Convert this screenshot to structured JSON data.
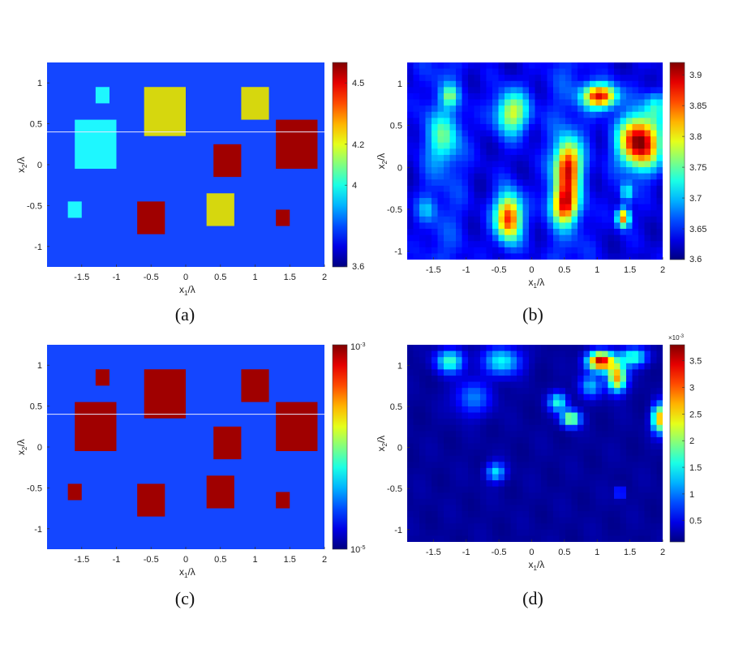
{
  "colors": {
    "background_blue": "#1446ff",
    "cyan": "#1ef7ff",
    "yellow": "#d6d70e",
    "dark_red": "#a00000",
    "white_line": "#e8e8ff"
  },
  "chart_data": [
    {
      "panel": "a",
      "type": "heatmap",
      "caption": "(a)",
      "xlabel_main": "x",
      "xlabel_sub": "1",
      "xlabel_rest": "/λ",
      "ylabel_main": "x",
      "ylabel_sub": "2",
      "ylabel_rest": "/λ",
      "xlim": [
        -2.0,
        2.0
      ],
      "ylim": [
        -1.25,
        1.25
      ],
      "xticks": [
        "-1.5",
        "-1",
        "-0.5",
        "0",
        "0.5",
        "1",
        "1.5",
        "2"
      ],
      "yticks": [
        "1",
        "0.5",
        "0",
        "-0.5",
        "-1"
      ],
      "colorbar": {
        "min": 3.6,
        "max": 4.6,
        "ticks": [
          "4.5",
          "4.2",
          "4",
          "3.6"
        ]
      },
      "background_value": 3.6,
      "blocks": [
        {
          "x0": -1.3,
          "x1": -1.1,
          "y0": 0.75,
          "y1": 0.95,
          "value": 3.9
        },
        {
          "x0": -1.6,
          "x1": -1.0,
          "y0": -0.05,
          "y1": 0.55,
          "value": 3.9
        },
        {
          "x0": -1.7,
          "x1": -1.5,
          "y0": -0.65,
          "y1": -0.45,
          "value": 3.9
        },
        {
          "x0": -0.6,
          "x1": 0.0,
          "y0": 0.35,
          "y1": 0.95,
          "value": 4.2
        },
        {
          "x0": 0.8,
          "x1": 1.2,
          "y0": 0.55,
          "y1": 0.95,
          "value": 4.2
        },
        {
          "x0": 0.3,
          "x1": 0.7,
          "y0": -0.75,
          "y1": -0.35,
          "value": 4.2
        },
        {
          "x0": 1.3,
          "x1": 1.9,
          "y0": -0.05,
          "y1": 0.55,
          "value": 4.5
        },
        {
          "x0": 0.4,
          "x1": 0.8,
          "y0": -0.15,
          "y1": 0.25,
          "value": 4.5
        },
        {
          "x0": -0.7,
          "x1": -0.3,
          "y0": -0.85,
          "y1": -0.45,
          "value": 4.5
        },
        {
          "x0": 1.3,
          "x1": 1.5,
          "y0": -0.75,
          "y1": -0.55,
          "value": 4.5
        }
      ],
      "guide_line_y": 0.4
    },
    {
      "panel": "b",
      "type": "heatmap",
      "caption": "(b)",
      "xlabel_main": "x",
      "xlabel_sub": "1",
      "xlabel_rest": "/λ",
      "ylabel_main": "x",
      "ylabel_sub": "2",
      "ylabel_rest": "/λ",
      "xlim": [
        -1.9,
        2.0
      ],
      "ylim": [
        -1.1,
        1.25
      ],
      "xticks": [
        "-1.5",
        "-1",
        "-0.5",
        "0",
        "0.5",
        "1",
        "1.5",
        "2"
      ],
      "yticks": [
        "1",
        "0.5",
        "0",
        "-0.5",
        "-1"
      ],
      "colorbar": {
        "min": 3.6,
        "max": 3.92,
        "ticks": [
          "3.9",
          "3.85",
          "3.8",
          "3.75",
          "3.7",
          "3.65",
          "3.6"
        ]
      },
      "background_value": 3.63,
      "blobs": [
        {
          "x": -1.25,
          "y": 0.85,
          "sx": 0.09,
          "sy": 0.09,
          "amp": 0.1
        },
        {
          "x": -1.35,
          "y": 0.35,
          "sx": 0.18,
          "sy": 0.22,
          "amp": 0.09
        },
        {
          "x": -0.3,
          "y": 0.65,
          "sx": 0.18,
          "sy": 0.18,
          "amp": 0.16
        },
        {
          "x": -0.35,
          "y": -0.6,
          "sx": 0.14,
          "sy": 0.2,
          "amp": 0.25
        },
        {
          "x": 0.55,
          "y": 0.0,
          "sx": 0.14,
          "sy": 0.22,
          "amp": 0.24
        },
        {
          "x": 0.5,
          "y": -0.45,
          "sx": 0.14,
          "sy": 0.16,
          "amp": 0.22
        },
        {
          "x": 1.05,
          "y": 0.85,
          "sx": 0.18,
          "sy": 0.1,
          "amp": 0.26
        },
        {
          "x": 1.65,
          "y": 0.3,
          "sx": 0.22,
          "sy": 0.22,
          "amp": 0.3
        },
        {
          "x": 1.4,
          "y": -0.6,
          "sx": 0.07,
          "sy": 0.08,
          "amp": 0.22
        },
        {
          "x": 1.45,
          "y": -0.3,
          "sx": 0.07,
          "sy": 0.08,
          "amp": 0.1
        },
        {
          "x": 1.9,
          "y": 0.75,
          "sx": 0.12,
          "sy": 0.12,
          "amp": 0.08
        },
        {
          "x": -1.6,
          "y": -0.5,
          "sx": 0.1,
          "sy": 0.1,
          "amp": 0.05
        }
      ]
    },
    {
      "panel": "c",
      "type": "heatmap",
      "caption": "(c)",
      "xlabel_main": "x",
      "xlabel_sub": "1",
      "xlabel_rest": "/λ",
      "ylabel_main": "x",
      "ylabel_sub": "2",
      "ylabel_rest": "/λ",
      "xlim": [
        -2.0,
        2.0
      ],
      "ylim": [
        -1.25,
        1.25
      ],
      "xticks": [
        "-1.5",
        "-1",
        "-0.5",
        "0",
        "0.5",
        "1",
        "1.5",
        "2"
      ],
      "yticks": [
        "1",
        "0.5",
        "0",
        "-0.5",
        "-1"
      ],
      "colorbar": {
        "min": 1e-05,
        "max": 0.001,
        "tick_top": "10",
        "tick_top_exp": "-3",
        "tick_bottom": "10",
        "tick_bottom_exp": "-5"
      },
      "background_value": 1e-05,
      "blocks": [
        {
          "x0": -1.3,
          "x1": -1.1,
          "y0": 0.75,
          "y1": 0.95,
          "value": 0.001
        },
        {
          "x0": -1.6,
          "x1": -1.0,
          "y0": -0.05,
          "y1": 0.55,
          "value": 0.001
        },
        {
          "x0": -1.7,
          "x1": -1.5,
          "y0": -0.65,
          "y1": -0.45,
          "value": 0.001
        },
        {
          "x0": -0.6,
          "x1": 0.0,
          "y0": 0.35,
          "y1": 0.95,
          "value": 0.001
        },
        {
          "x0": 0.8,
          "x1": 1.2,
          "y0": 0.55,
          "y1": 0.95,
          "value": 0.001
        },
        {
          "x0": 0.3,
          "x1": 0.7,
          "y0": -0.75,
          "y1": -0.35,
          "value": 0.001
        },
        {
          "x0": 1.3,
          "x1": 1.9,
          "y0": -0.05,
          "y1": 0.55,
          "value": 0.001
        },
        {
          "x0": 0.4,
          "x1": 0.8,
          "y0": -0.15,
          "y1": 0.25,
          "value": 0.001
        },
        {
          "x0": -0.7,
          "x1": -0.3,
          "y0": -0.85,
          "y1": -0.45,
          "value": 0.001
        },
        {
          "x0": 1.3,
          "x1": 1.5,
          "y0": -0.75,
          "y1": -0.55,
          "value": 0.001
        }
      ],
      "guide_line_y": 0.4
    },
    {
      "panel": "d",
      "type": "heatmap",
      "caption": "(d)",
      "xlabel_main": "x",
      "xlabel_sub": "1",
      "xlabel_rest": "/λ",
      "ylabel_main": "x",
      "ylabel_sub": "2",
      "ylabel_rest": "/λ",
      "xlim": [
        -1.9,
        2.0
      ],
      "ylim": [
        -1.15,
        1.25
      ],
      "xticks": [
        "-1.5",
        "-1",
        "-0.5",
        "0",
        "0.5",
        "1",
        "1.5",
        "2"
      ],
      "yticks": [
        "1",
        "0.5",
        "0",
        "-0.5",
        "-1"
      ],
      "colorbar": {
        "min": 0.0001,
        "max": 0.0038,
        "scale_label": "×10",
        "scale_exp": "-3",
        "ticks": [
          "3.5",
          "3",
          "2.5",
          "2",
          "1.5",
          "1",
          "0.5"
        ]
      },
      "background_value": 0.0002,
      "blobs": [
        {
          "x": -1.25,
          "y": 1.05,
          "sx": 0.15,
          "sy": 0.1,
          "amp": 0.0015
        },
        {
          "x": -0.45,
          "y": 1.05,
          "sx": 0.2,
          "sy": 0.12,
          "amp": 0.0013
        },
        {
          "x": 1.05,
          "y": 1.05,
          "sx": 0.14,
          "sy": 0.08,
          "amp": 0.0034
        },
        {
          "x": 1.3,
          "y": 0.85,
          "sx": 0.1,
          "sy": 0.12,
          "amp": 0.0026
        },
        {
          "x": 1.55,
          "y": 1.1,
          "sx": 0.15,
          "sy": 0.08,
          "amp": 0.0015
        },
        {
          "x": 0.6,
          "y": 0.35,
          "sx": 0.1,
          "sy": 0.07,
          "amp": 0.002
        },
        {
          "x": 1.95,
          "y": 0.35,
          "sx": 0.08,
          "sy": 0.12,
          "amp": 0.0025
        },
        {
          "x": -0.55,
          "y": -0.3,
          "sx": 0.1,
          "sy": 0.08,
          "amp": 0.0012
        },
        {
          "x": 0.4,
          "y": 0.55,
          "sx": 0.1,
          "sy": 0.08,
          "amp": 0.0014
        },
        {
          "x": 1.35,
          "y": -0.55,
          "sx": 0.05,
          "sy": 0.05,
          "amp": 0.0009
        },
        {
          "x": -0.9,
          "y": 0.6,
          "sx": 0.2,
          "sy": 0.15,
          "amp": 0.0008
        },
        {
          "x": 0.9,
          "y": 0.75,
          "sx": 0.12,
          "sy": 0.1,
          "amp": 0.001
        }
      ]
    }
  ]
}
